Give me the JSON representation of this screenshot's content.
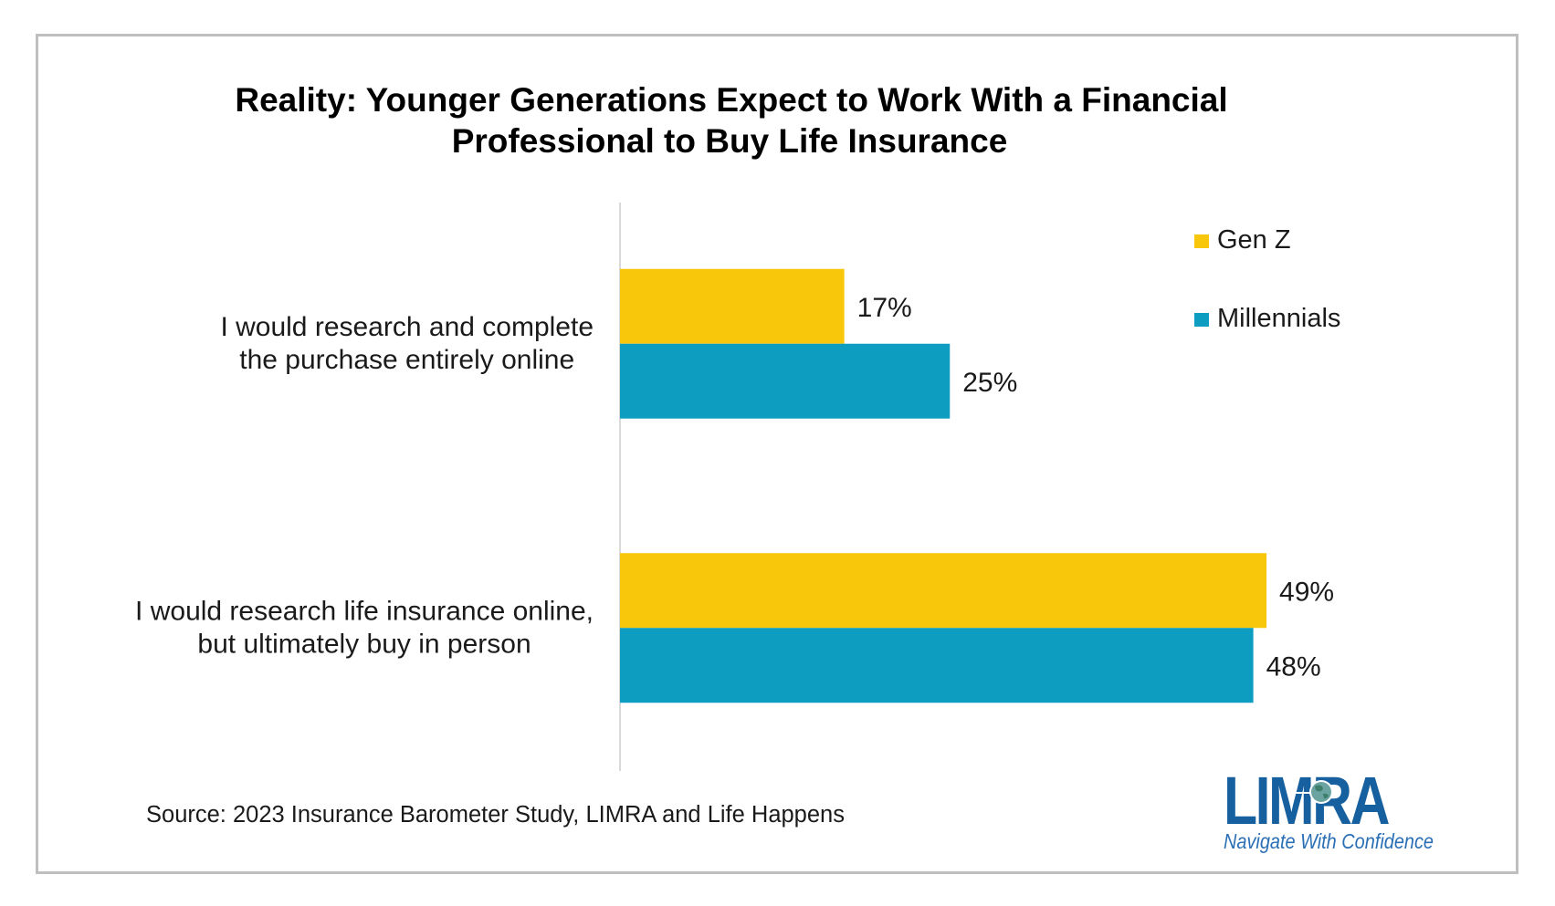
{
  "chart_data": {
    "type": "bar",
    "orientation": "horizontal",
    "title": "Reality: Younger Generations Expect to Work With a Financial Professional to Buy Life Insurance",
    "title_lines": [
      "Reality: Younger Generations Expect to Work With a Financial",
      "Professional to Buy Life Insurance"
    ],
    "categories": [
      "I would research and complete the purchase entirely online",
      "I would research life insurance online, but ultimately buy in person"
    ],
    "category_lines": [
      [
        "I would research and complete",
        "the purchase entirely online"
      ],
      [
        "I would research life insurance online,",
        "but ultimately buy in person"
      ]
    ],
    "series": [
      {
        "name": "Gen Z",
        "values": [
          17,
          49
        ],
        "labels": [
          "17%",
          "49%"
        ],
        "color": "#F8C70C"
      },
      {
        "name": "Millennials",
        "values": [
          25,
          48
        ],
        "labels": [
          "25%",
          "48%"
        ],
        "color": "#0D9DC1"
      }
    ],
    "xlabel": "",
    "ylabel": "",
    "xlim": [
      0,
      60
    ],
    "unit": "%",
    "grid": false,
    "legend_position": "top-right",
    "source": "Source: 2023 Insurance Barometer Study, LIMRA and Life Happens"
  },
  "logo": {
    "name": "LIMRA",
    "tagline": "Navigate With Confidence",
    "color": "#17609F"
  },
  "colors": {
    "frame": "#bfbfbf",
    "axis": "#d9d9d9"
  }
}
